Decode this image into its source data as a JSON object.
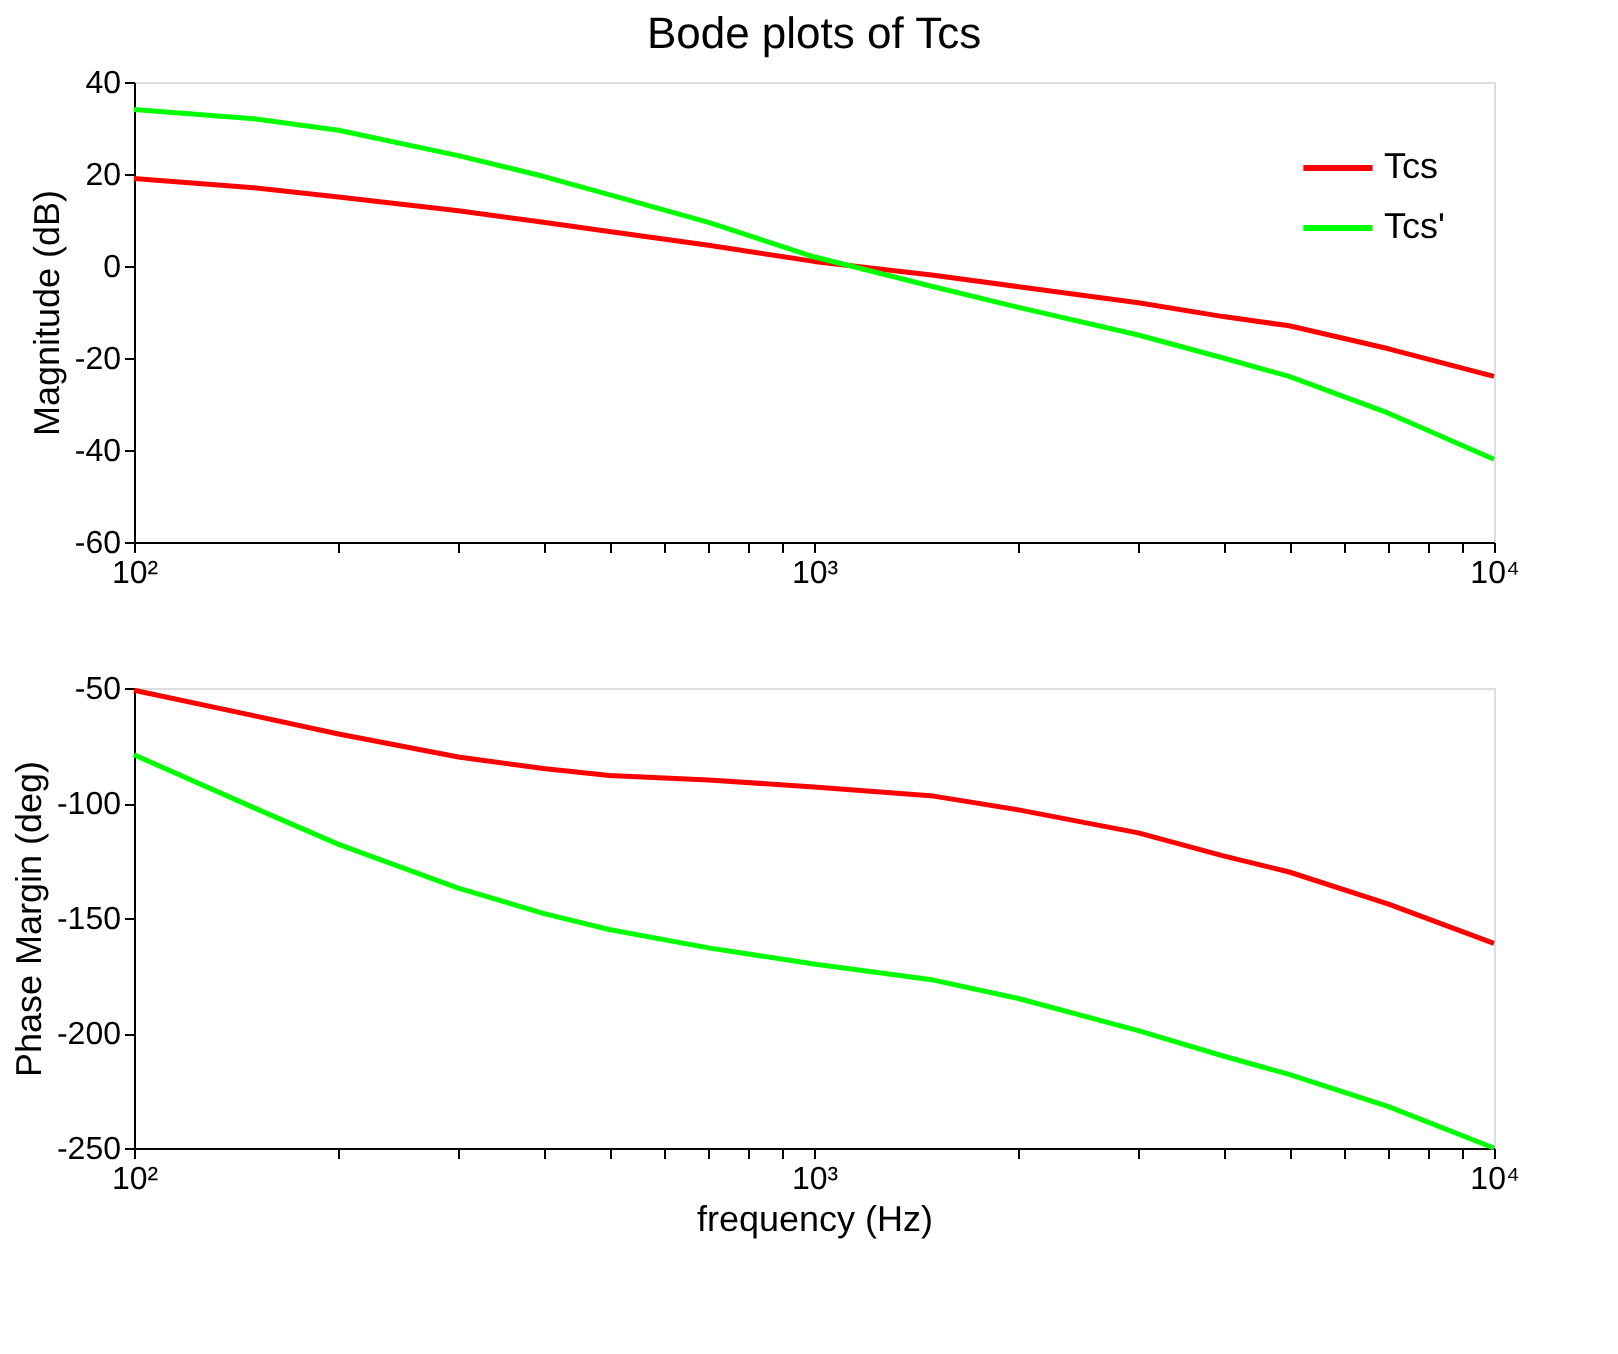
{
  "chart_data": [
    {
      "type": "line",
      "title": "Bode plots of Tcs",
      "ylabel": "Magnitude (dB)",
      "log": "x",
      "legend": "top right",
      "grid": false,
      "line_style": "solid",
      "marker": "none",
      "x": [
        100,
        150,
        200,
        300,
        400,
        500,
        700,
        1000,
        1500,
        2000,
        3000,
        4000,
        5000,
        7000,
        10000
      ],
      "xlim": [
        100,
        10000
      ],
      "xticks": [
        {
          "value": 100,
          "label": "10²"
        },
        {
          "value": 200,
          "label": null
        },
        {
          "value": 300,
          "label": null
        },
        {
          "value": 400,
          "label": null
        },
        {
          "value": 500,
          "label": null
        },
        {
          "value": 600,
          "label": null
        },
        {
          "value": 700,
          "label": null
        },
        {
          "value": 800,
          "label": null
        },
        {
          "value": 900,
          "label": null
        },
        {
          "value": 1000,
          "label": "10³"
        },
        {
          "value": 2000,
          "label": null
        },
        {
          "value": 3000,
          "label": null
        },
        {
          "value": 4000,
          "label": null
        },
        {
          "value": 5000,
          "label": null
        },
        {
          "value": 6000,
          "label": null
        },
        {
          "value": 7000,
          "label": null
        },
        {
          "value": 8000,
          "label": null
        },
        {
          "value": 9000,
          "label": null
        },
        {
          "value": 10000,
          "label": "10⁴"
        }
      ],
      "ylim": [
        -60,
        40
      ],
      "yticks": [
        -60,
        -40,
        -20,
        0,
        20,
        40
      ],
      "series": [
        {
          "name": "Tcs",
          "color": "#ff0000",
          "values": [
            19,
            17,
            15,
            12,
            9.5,
            7.5,
            4.5,
            1,
            -2,
            -4.5,
            -8,
            -11,
            -13,
            -18,
            -24
          ]
        },
        {
          "name": "Tcs'",
          "color": "#00ff00",
          "values": [
            34,
            32,
            29.5,
            24,
            19.5,
            15.5,
            9.5,
            2,
            -4.5,
            -9,
            -15,
            -20,
            -24,
            -32,
            -42
          ]
        }
      ]
    },
    {
      "type": "line",
      "xlabel": "frequency (Hz)",
      "ylabel": "Phase Margin (deg)",
      "log": "x",
      "grid": false,
      "line_style": "solid",
      "marker": "none",
      "x": [
        100,
        150,
        200,
        300,
        400,
        500,
        700,
        1000,
        1500,
        2000,
        3000,
        4000,
        5000,
        7000,
        10000
      ],
      "xlim": [
        100,
        10000
      ],
      "xticks": [
        {
          "value": 100,
          "label": "10²"
        },
        {
          "value": 200,
          "label": null
        },
        {
          "value": 300,
          "label": null
        },
        {
          "value": 400,
          "label": null
        },
        {
          "value": 500,
          "label": null
        },
        {
          "value": 600,
          "label": null
        },
        {
          "value": 700,
          "label": null
        },
        {
          "value": 800,
          "label": null
        },
        {
          "value": 900,
          "label": null
        },
        {
          "value": 1000,
          "label": "10³"
        },
        {
          "value": 2000,
          "label": null
        },
        {
          "value": 3000,
          "label": null
        },
        {
          "value": 4000,
          "label": null
        },
        {
          "value": 5000,
          "label": null
        },
        {
          "value": 6000,
          "label": null
        },
        {
          "value": 7000,
          "label": null
        },
        {
          "value": 8000,
          "label": null
        },
        {
          "value": 9000,
          "label": null
        },
        {
          "value": 10000,
          "label": "10⁴"
        }
      ],
      "ylim": [
        -250,
        -50
      ],
      "yticks": [
        -250,
        -200,
        -150,
        -100,
        -50
      ],
      "series": [
        {
          "color": "#ff0000",
          "values": [
            -51,
            -62,
            -70,
            -80,
            -85,
            -88,
            -90,
            -93,
            -97,
            -103,
            -113,
            -123,
            -130,
            -144,
            -161
          ]
        },
        {
          "color": "#00ff00",
          "values": [
            -79,
            -102,
            -118,
            -137,
            -148,
            -155,
            -163,
            -170,
            -177,
            -185,
            -199,
            -210,
            -218,
            -232,
            -250
          ]
        }
      ]
    }
  ]
}
